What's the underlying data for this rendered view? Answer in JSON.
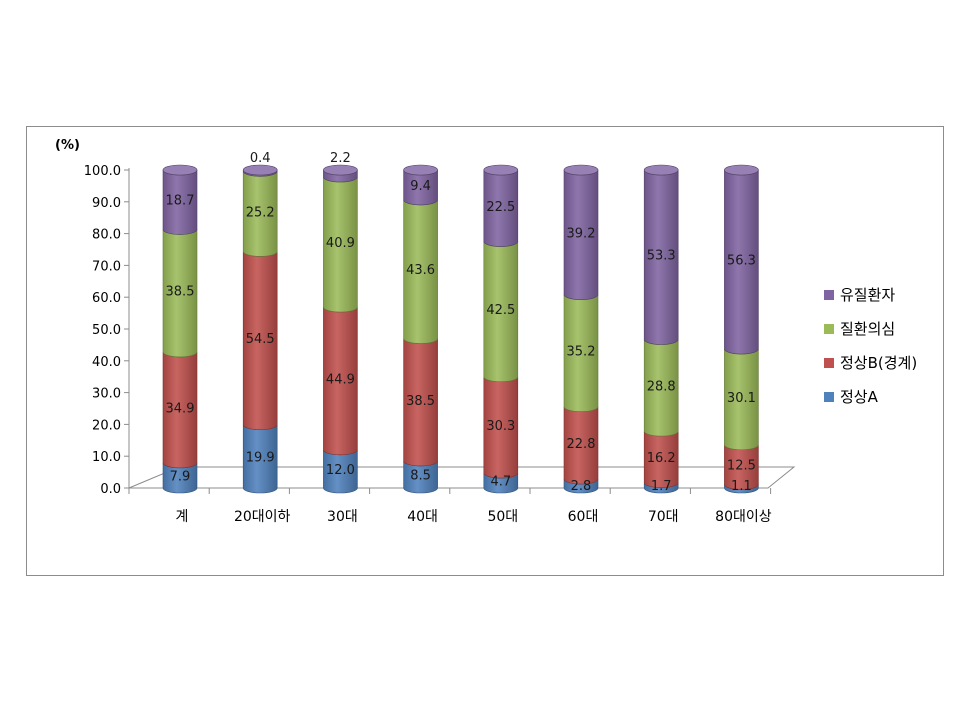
{
  "chart_data": {
    "type": "bar",
    "stacked": true,
    "unit_label": "(%)",
    "categories": [
      "계",
      "20대이하",
      "30대",
      "40대",
      "50대",
      "60대",
      "70대",
      "80대이상"
    ],
    "y_ticks": [
      "0.0",
      "10.0",
      "20.0",
      "30.0",
      "40.0",
      "50.0",
      "60.0",
      "70.0",
      "80.0",
      "90.0",
      "100.0"
    ],
    "ylim": [
      0,
      100
    ],
    "legend_position": "right",
    "series": [
      {
        "name": "정상A",
        "color": "#4f81bd",
        "values": [
          7.9,
          19.9,
          12.0,
          8.5,
          4.7,
          2.8,
          1.7,
          1.1
        ],
        "labels": [
          "7.9",
          "19.9",
          "12.0",
          "8.5",
          "4.7",
          "2.8",
          "1.7",
          "1.1"
        ]
      },
      {
        "name": "정상B(경계)",
        "color": "#c0504d",
        "values": [
          34.9,
          54.5,
          44.9,
          38.5,
          30.3,
          22.8,
          16.2,
          12.5
        ],
        "labels": [
          "34.9",
          "54.5",
          "44.9",
          "38.5",
          "30.3",
          "22.8",
          "16.2",
          "12.5"
        ]
      },
      {
        "name": "질환의심",
        "color": "#9bbb59",
        "values": [
          38.5,
          25.2,
          40.9,
          43.6,
          42.5,
          35.2,
          28.8,
          30.1
        ],
        "labels": [
          "38.5",
          "25.2",
          "40.9",
          "43.6",
          "42.5",
          "35.2",
          "28.8",
          "30.1"
        ]
      },
      {
        "name": "유질환자",
        "color": "#8064a2",
        "values": [
          18.7,
          0.4,
          2.2,
          9.4,
          22.5,
          39.2,
          53.3,
          56.3
        ],
        "labels": [
          "18.7",
          "0.4",
          "2.2",
          "9.4",
          "22.5",
          "39.2",
          "53.3",
          "56.3"
        ]
      }
    ]
  }
}
